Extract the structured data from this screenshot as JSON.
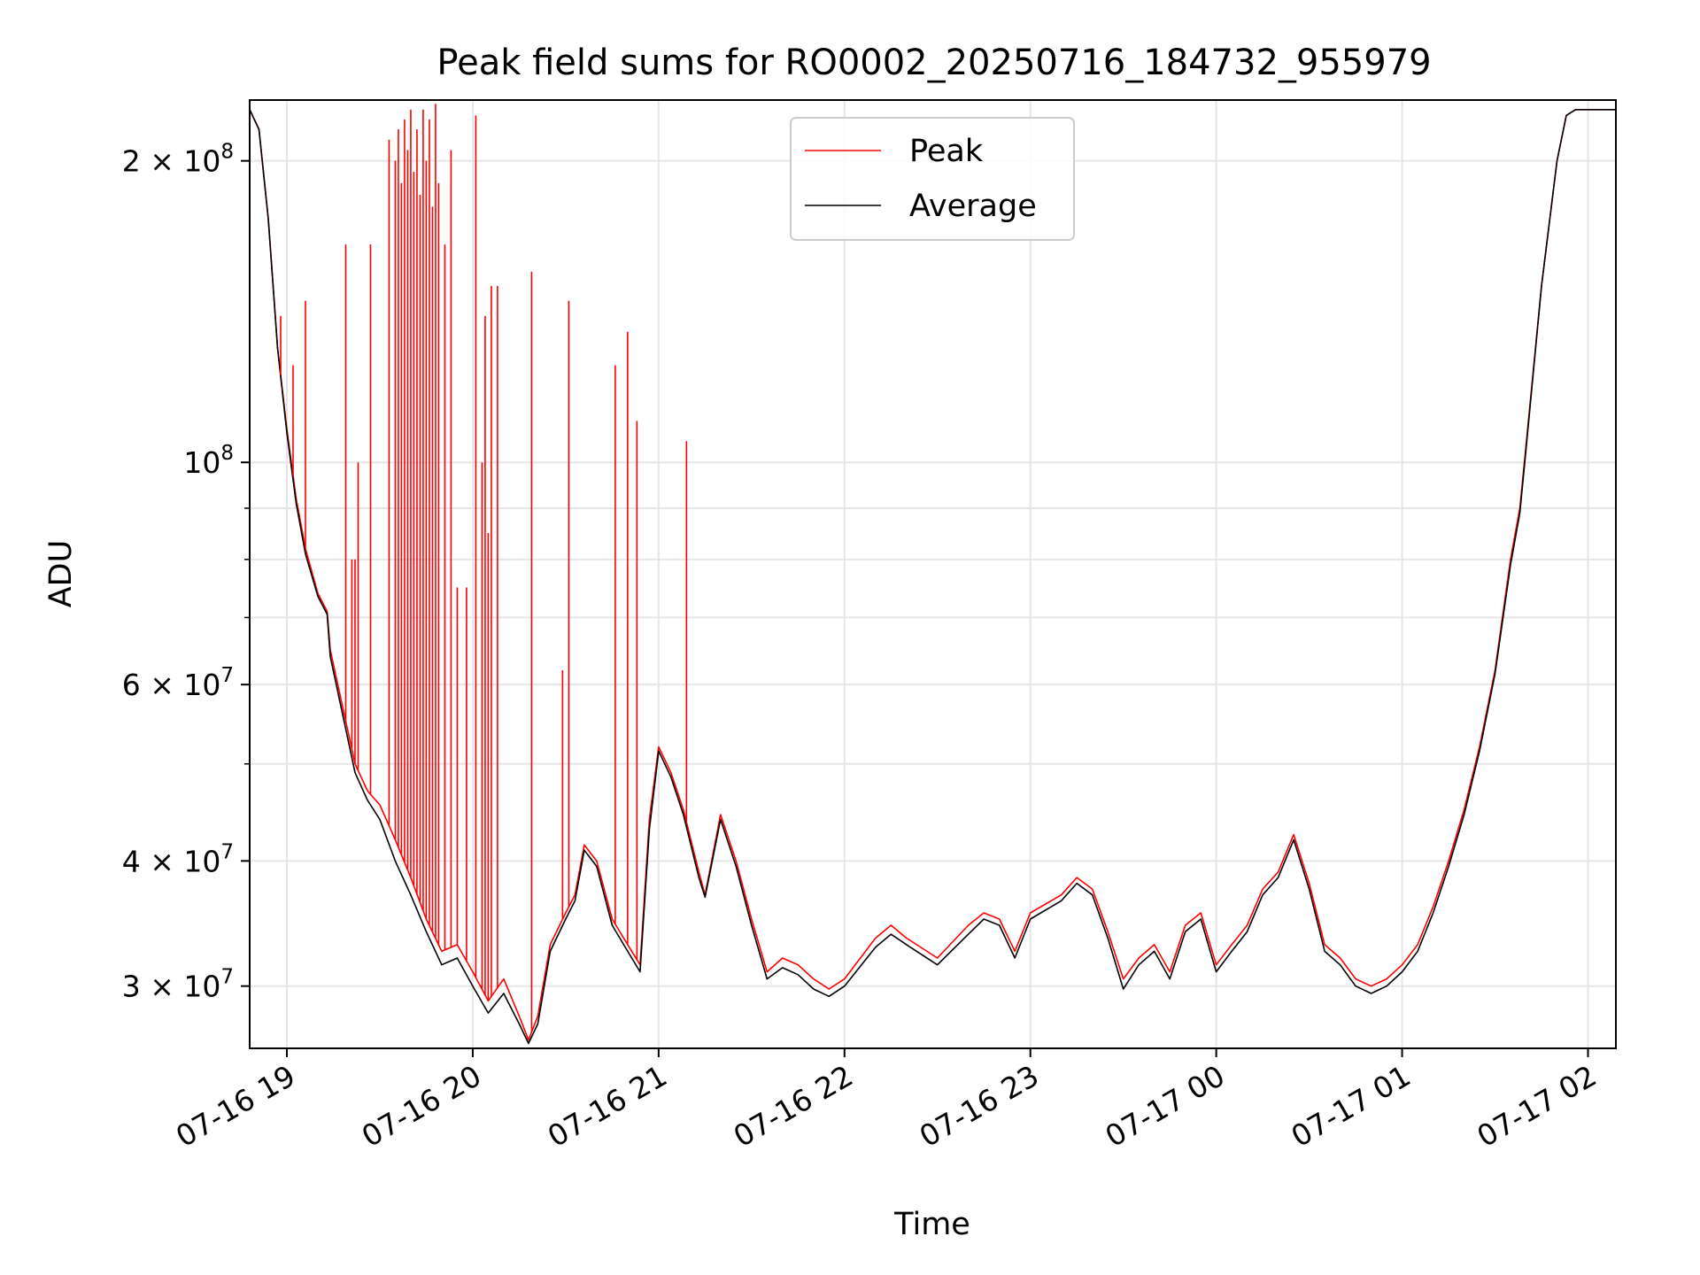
{
  "chart_data": {
    "type": "line",
    "title": "Peak field sums for RO0002_20250716_184732_955979",
    "xlabel": "Time",
    "ylabel": "ADU",
    "yscale": "log",
    "grid": true,
    "legend_position": "top-center",
    "xlim": [
      "2025-07-16 18:48",
      "2025-07-17 02:09"
    ],
    "ylim": [
      26000000,
      230000000
    ],
    "x_ticks": [
      {
        "value": "2025-07-16 19:00",
        "label": "07-16 19"
      },
      {
        "value": "2025-07-16 20:00",
        "label": "07-16 20"
      },
      {
        "value": "2025-07-16 21:00",
        "label": "07-16 21"
      },
      {
        "value": "2025-07-16 22:00",
        "label": "07-16 22"
      },
      {
        "value": "2025-07-16 23:00",
        "label": "07-16 23"
      },
      {
        "value": "2025-07-17 00:00",
        "label": "07-17 00"
      },
      {
        "value": "2025-07-17 01:00",
        "label": "07-17 01"
      },
      {
        "value": "2025-07-17 02:00",
        "label": "07-17 02"
      }
    ],
    "y_ticks": [
      {
        "value": 30000000,
        "mantissa": "3",
        "base": "10",
        "exp": "7"
      },
      {
        "value": 40000000,
        "mantissa": "4",
        "base": "10",
        "exp": "7"
      },
      {
        "value": 60000000,
        "mantissa": "6",
        "base": "10",
        "exp": "7"
      },
      {
        "value": 100000000,
        "mantissa": "",
        "base": "10",
        "exp": "8"
      },
      {
        "value": 200000000,
        "mantissa": "2",
        "base": "10",
        "exp": "8"
      }
    ],
    "y_minor_ticks": [
      50000000,
      70000000,
      80000000,
      90000000
    ],
    "series": [
      {
        "name": "Peak",
        "color": "#ff0000",
        "points": [
          [
            "2025-07-16 18:48",
            225000000
          ],
          [
            "2025-07-16 18:51",
            215000000
          ],
          [
            "2025-07-16 18:54",
            175000000
          ],
          [
            "2025-07-16 18:57",
            130000000
          ],
          [
            "2025-07-16 19:00",
            108000000
          ],
          [
            "2025-07-16 19:03",
            92000000
          ],
          [
            "2025-07-16 19:06",
            82000000
          ],
          [
            "2025-07-16 19:10",
            74000000
          ],
          [
            "2025-07-16 19:13",
            71000000
          ],
          [
            "2025-07-16 19:14",
            65000000
          ],
          [
            "2025-07-16 19:18",
            57000000
          ],
          [
            "2025-07-16 19:22",
            50000000
          ],
          [
            "2025-07-16 19:26",
            47000000
          ],
          [
            "2025-07-16 19:30",
            45500000
          ],
          [
            "2025-07-16 19:35",
            42000000
          ],
          [
            "2025-07-16 19:40",
            38500000
          ],
          [
            "2025-07-16 19:45",
            35000000
          ],
          [
            "2025-07-16 19:50",
            32500000
          ],
          [
            "2025-07-16 19:55",
            33000000
          ],
          [
            "2025-07-16 20:00",
            31000000
          ],
          [
            "2025-07-16 20:05",
            29000000
          ],
          [
            "2025-07-16 20:10",
            30500000
          ],
          [
            "2025-07-16 20:15",
            28000000
          ],
          [
            "2025-07-16 20:18",
            26500000
          ],
          [
            "2025-07-16 20:21",
            28000000
          ],
          [
            "2025-07-16 20:25",
            33000000
          ],
          [
            "2025-07-16 20:30",
            35500000
          ],
          [
            "2025-07-16 20:33",
            37000000
          ],
          [
            "2025-07-16 20:36",
            41500000
          ],
          [
            "2025-07-16 20:40",
            40000000
          ],
          [
            "2025-07-16 20:45",
            35000000
          ],
          [
            "2025-07-16 20:50",
            33000000
          ],
          [
            "2025-07-16 20:54",
            31500000
          ],
          [
            "2025-07-16 20:57",
            44000000
          ],
          [
            "2025-07-16 21:00",
            52000000
          ],
          [
            "2025-07-16 21:04",
            49000000
          ],
          [
            "2025-07-16 21:08",
            45000000
          ],
          [
            "2025-07-16 21:13",
            39000000
          ],
          [
            "2025-07-16 21:15",
            37000000
          ],
          [
            "2025-07-16 21:20",
            44500000
          ],
          [
            "2025-07-16 21:25",
            40000000
          ],
          [
            "2025-07-16 21:30",
            35000000
          ],
          [
            "2025-07-16 21:35",
            31000000
          ],
          [
            "2025-07-16 21:40",
            32000000
          ],
          [
            "2025-07-16 21:45",
            31500000
          ],
          [
            "2025-07-16 21:50",
            30500000
          ],
          [
            "2025-07-16 21:55",
            29800000
          ],
          [
            "2025-07-16 22:00",
            30500000
          ],
          [
            "2025-07-16 22:10",
            33500000
          ],
          [
            "2025-07-16 22:15",
            34500000
          ],
          [
            "2025-07-16 22:20",
            33500000
          ],
          [
            "2025-07-16 22:30",
            32000000
          ],
          [
            "2025-07-16 22:40",
            34500000
          ],
          [
            "2025-07-16 22:45",
            35500000
          ],
          [
            "2025-07-16 22:50",
            35000000
          ],
          [
            "2025-07-16 22:55",
            32500000
          ],
          [
            "2025-07-16 23:00",
            35500000
          ],
          [
            "2025-07-16 23:10",
            37000000
          ],
          [
            "2025-07-16 23:15",
            38500000
          ],
          [
            "2025-07-16 23:20",
            37500000
          ],
          [
            "2025-07-16 23:25",
            34000000
          ],
          [
            "2025-07-16 23:30",
            30500000
          ],
          [
            "2025-07-16 23:35",
            32000000
          ],
          [
            "2025-07-16 23:40",
            33000000
          ],
          [
            "2025-07-16 23:45",
            31000000
          ],
          [
            "2025-07-16 23:50",
            34500000
          ],
          [
            "2025-07-16 23:55",
            35500000
          ],
          [
            "2025-07-17 00:00",
            31500000
          ],
          [
            "2025-07-17 00:05",
            33000000
          ],
          [
            "2025-07-17 00:10",
            34500000
          ],
          [
            "2025-07-17 00:15",
            37500000
          ],
          [
            "2025-07-17 00:20",
            39000000
          ],
          [
            "2025-07-17 00:25",
            42500000
          ],
          [
            "2025-07-17 00:30",
            38000000
          ],
          [
            "2025-07-17 00:35",
            33000000
          ],
          [
            "2025-07-17 00:40",
            32000000
          ],
          [
            "2025-07-17 00:45",
            30500000
          ],
          [
            "2025-07-17 00:50",
            30000000
          ],
          [
            "2025-07-17 00:55",
            30500000
          ],
          [
            "2025-07-17 01:00",
            31500000
          ],
          [
            "2025-07-17 01:05",
            33000000
          ],
          [
            "2025-07-17 01:10",
            36000000
          ],
          [
            "2025-07-17 01:15",
            40000000
          ],
          [
            "2025-07-17 01:20",
            45000000
          ],
          [
            "2025-07-17 01:25",
            52000000
          ],
          [
            "2025-07-17 01:30",
            62000000
          ],
          [
            "2025-07-17 01:35",
            80000000
          ],
          [
            "2025-07-17 01:38",
            90000000
          ],
          [
            "2025-07-17 01:40",
            104000000
          ],
          [
            "2025-07-17 01:45",
            150000000
          ],
          [
            "2025-07-17 01:50",
            200000000
          ],
          [
            "2025-07-17 01:53",
            222000000
          ],
          [
            "2025-07-17 01:56",
            225000000
          ],
          [
            "2025-07-17 02:09",
            225000000
          ]
        ],
        "spikes": [
          [
            "2025-07-16 18:58",
            140000000
          ],
          [
            "2025-07-16 19:02",
            125000000
          ],
          [
            "2025-07-16 19:06",
            145000000
          ],
          [
            "2025-07-16 19:19",
            165000000
          ],
          [
            "2025-07-16 19:21",
            80000000
          ],
          [
            "2025-07-16 19:22",
            80000000
          ],
          [
            "2025-07-16 19:23",
            100000000
          ],
          [
            "2025-07-16 19:27",
            165000000
          ],
          [
            "2025-07-16 19:33",
            210000000
          ],
          [
            "2025-07-16 19:35",
            200000000
          ],
          [
            "2025-07-16 19:36",
            215000000
          ],
          [
            "2025-07-16 19:37",
            190000000
          ],
          [
            "2025-07-16 19:38",
            220000000
          ],
          [
            "2025-07-16 19:39",
            205000000
          ],
          [
            "2025-07-16 19:40",
            225000000
          ],
          [
            "2025-07-16 19:41",
            195000000
          ],
          [
            "2025-07-16 19:42",
            215000000
          ],
          [
            "2025-07-16 19:43",
            185000000
          ],
          [
            "2025-07-16 19:44",
            225000000
          ],
          [
            "2025-07-16 19:45",
            200000000
          ],
          [
            "2025-07-16 19:46",
            220000000
          ],
          [
            "2025-07-16 19:47",
            180000000
          ],
          [
            "2025-07-16 19:48",
            228000000
          ],
          [
            "2025-07-16 19:49",
            190000000
          ],
          [
            "2025-07-16 19:51",
            165000000
          ],
          [
            "2025-07-16 19:53",
            205000000
          ],
          [
            "2025-07-16 19:55",
            75000000
          ],
          [
            "2025-07-16 19:58",
            75000000
          ],
          [
            "2025-07-16 20:01",
            222000000
          ],
          [
            "2025-07-16 20:03",
            100000000
          ],
          [
            "2025-07-16 20:04",
            140000000
          ],
          [
            "2025-07-16 20:05",
            85000000
          ],
          [
            "2025-07-16 20:06",
            150000000
          ],
          [
            "2025-07-16 20:08",
            150000000
          ],
          [
            "2025-07-16 20:19",
            155000000
          ],
          [
            "2025-07-16 20:29",
            62000000
          ],
          [
            "2025-07-16 20:31",
            145000000
          ],
          [
            "2025-07-16 20:46",
            125000000
          ],
          [
            "2025-07-16 20:50",
            135000000
          ],
          [
            "2025-07-16 20:53",
            110000000
          ],
          [
            "2025-07-16 21:09",
            105000000
          ]
        ]
      },
      {
        "name": "Average",
        "color": "#000000",
        "points": [
          [
            "2025-07-16 18:48",
            225000000
          ],
          [
            "2025-07-16 18:51",
            215000000
          ],
          [
            "2025-07-16 18:54",
            175000000
          ],
          [
            "2025-07-16 18:57",
            130000000
          ],
          [
            "2025-07-16 19:00",
            107000000
          ],
          [
            "2025-07-16 19:03",
            91000000
          ],
          [
            "2025-07-16 19:06",
            81000000
          ],
          [
            "2025-07-16 19:10",
            73500000
          ],
          [
            "2025-07-16 19:13",
            70500000
          ],
          [
            "2025-07-16 19:14",
            64000000
          ],
          [
            "2025-07-16 19:18",
            56000000
          ],
          [
            "2025-07-16 19:22",
            49000000
          ],
          [
            "2025-07-16 19:26",
            46000000
          ],
          [
            "2025-07-16 19:30",
            44000000
          ],
          [
            "2025-07-16 19:35",
            40000000
          ],
          [
            "2025-07-16 19:40",
            37000000
          ],
          [
            "2025-07-16 19:45",
            34000000
          ],
          [
            "2025-07-16 19:50",
            31500000
          ],
          [
            "2025-07-16 19:55",
            32000000
          ],
          [
            "2025-07-16 20:00",
            30000000
          ],
          [
            "2025-07-16 20:05",
            28200000
          ],
          [
            "2025-07-16 20:10",
            29500000
          ],
          [
            "2025-07-16 20:15",
            27500000
          ],
          [
            "2025-07-16 20:18",
            26300000
          ],
          [
            "2025-07-16 20:21",
            27500000
          ],
          [
            "2025-07-16 20:25",
            32500000
          ],
          [
            "2025-07-16 20:30",
            35000000
          ],
          [
            "2025-07-16 20:33",
            36500000
          ],
          [
            "2025-07-16 20:36",
            41000000
          ],
          [
            "2025-07-16 20:40",
            39500000
          ],
          [
            "2025-07-16 20:45",
            34500000
          ],
          [
            "2025-07-16 20:50",
            32500000
          ],
          [
            "2025-07-16 20:54",
            31000000
          ],
          [
            "2025-07-16 20:57",
            43000000
          ],
          [
            "2025-07-16 21:00",
            51500000
          ],
          [
            "2025-07-16 21:04",
            48500000
          ],
          [
            "2025-07-16 21:08",
            44500000
          ],
          [
            "2025-07-16 21:13",
            38500000
          ],
          [
            "2025-07-16 21:15",
            36800000
          ],
          [
            "2025-07-16 21:20",
            44000000
          ],
          [
            "2025-07-16 21:25",
            39500000
          ],
          [
            "2025-07-16 21:30",
            34500000
          ],
          [
            "2025-07-16 21:35",
            30500000
          ],
          [
            "2025-07-16 21:40",
            31300000
          ],
          [
            "2025-07-16 21:45",
            30800000
          ],
          [
            "2025-07-16 21:50",
            29800000
          ],
          [
            "2025-07-16 21:55",
            29300000
          ],
          [
            "2025-07-16 22:00",
            30000000
          ],
          [
            "2025-07-16 22:10",
            32800000
          ],
          [
            "2025-07-16 22:15",
            33800000
          ],
          [
            "2025-07-16 22:20",
            33000000
          ],
          [
            "2025-07-16 22:30",
            31500000
          ],
          [
            "2025-07-16 22:40",
            33800000
          ],
          [
            "2025-07-16 22:45",
            35000000
          ],
          [
            "2025-07-16 22:50",
            34500000
          ],
          [
            "2025-07-16 22:55",
            32000000
          ],
          [
            "2025-07-16 23:00",
            35000000
          ],
          [
            "2025-07-16 23:10",
            36500000
          ],
          [
            "2025-07-16 23:15",
            38000000
          ],
          [
            "2025-07-16 23:20",
            37000000
          ],
          [
            "2025-07-16 23:25",
            33500000
          ],
          [
            "2025-07-16 23:30",
            29800000
          ],
          [
            "2025-07-16 23:35",
            31500000
          ],
          [
            "2025-07-16 23:40",
            32500000
          ],
          [
            "2025-07-16 23:45",
            30500000
          ],
          [
            "2025-07-16 23:50",
            34000000
          ],
          [
            "2025-07-16 23:55",
            35000000
          ],
          [
            "2025-07-17 00:00",
            31000000
          ],
          [
            "2025-07-17 00:05",
            32500000
          ],
          [
            "2025-07-17 00:10",
            34000000
          ],
          [
            "2025-07-17 00:15",
            37000000
          ],
          [
            "2025-07-17 00:20",
            38500000
          ],
          [
            "2025-07-17 00:25",
            42000000
          ],
          [
            "2025-07-17 00:30",
            37500000
          ],
          [
            "2025-07-17 00:35",
            32500000
          ],
          [
            "2025-07-17 00:40",
            31500000
          ],
          [
            "2025-07-17 00:45",
            30000000
          ],
          [
            "2025-07-17 00:50",
            29500000
          ],
          [
            "2025-07-17 00:55",
            30000000
          ],
          [
            "2025-07-17 01:00",
            31000000
          ],
          [
            "2025-07-17 01:05",
            32500000
          ],
          [
            "2025-07-17 01:10",
            35500000
          ],
          [
            "2025-07-17 01:15",
            39500000
          ],
          [
            "2025-07-17 01:20",
            44500000
          ],
          [
            "2025-07-17 01:25",
            51500000
          ],
          [
            "2025-07-17 01:30",
            61500000
          ],
          [
            "2025-07-17 01:35",
            79000000
          ],
          [
            "2025-07-17 01:38",
            89000000
          ],
          [
            "2025-07-17 01:40",
            103000000
          ],
          [
            "2025-07-17 01:45",
            150000000
          ],
          [
            "2025-07-17 01:50",
            200000000
          ],
          [
            "2025-07-17 01:53",
            222000000
          ],
          [
            "2025-07-17 01:56",
            225000000
          ],
          [
            "2025-07-17 02:09",
            225000000
          ]
        ]
      }
    ]
  }
}
